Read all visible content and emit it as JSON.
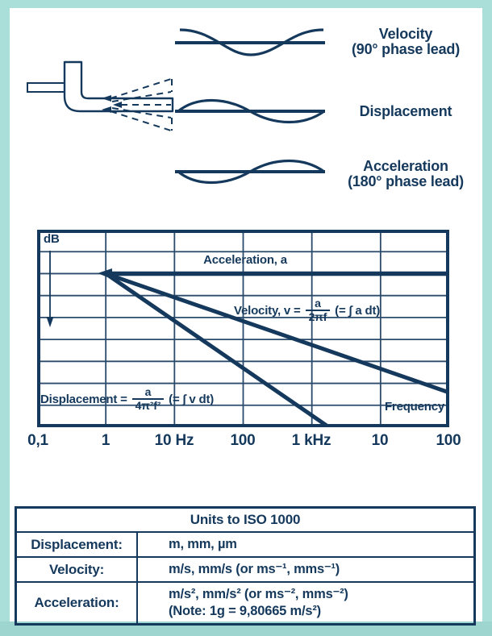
{
  "colors": {
    "navy": "#15395c",
    "grid_line": "#2b4b6c",
    "frame": "#a9ded9",
    "frame_bottom": "#9fd5cf",
    "background": "#ffffff"
  },
  "waveforms": {
    "items": [
      {
        "name": "velocity",
        "label_line1": "Velocity",
        "label_line2": "(90° phase lead)"
      },
      {
        "name": "displacement",
        "label_line1": "Displacement",
        "label_line2": ""
      },
      {
        "name": "acceleration",
        "label_line1": "Acceleration",
        "label_line2": "(180° phase lead)"
      }
    ]
  },
  "chart": {
    "ylabel": "dB",
    "xlabel": "Frequency",
    "acceleration_label": "Acceleration, a",
    "velocity_formula": {
      "prefix": "Velocity, v =",
      "numerator": "a",
      "denominator": "2πf",
      "suffix": "(= ∫ a dt)"
    },
    "displacement_formula": {
      "prefix": "Displacement =",
      "numerator": "a",
      "denominator": "4π²f²",
      "suffix": "(= ∫ v dt)"
    },
    "x_ticks": [
      "0,1",
      "1",
      "10 Hz",
      "100",
      "1 kHz",
      "10",
      "100"
    ]
  },
  "chart_data": {
    "type": "line",
    "title": "Vibration level vs frequency (log-log, relative dB)",
    "xlabel": "Frequency",
    "ylabel": "dB",
    "x_tick_labels": [
      "0,1",
      "1",
      "10 Hz",
      "100",
      "1 kHz",
      "10",
      "100"
    ],
    "grid": {
      "cols": 6,
      "rows": 9,
      "visible": true
    },
    "legend_position": "inline-annotations",
    "series": [
      {
        "name": "Acceleration, a",
        "grid_points": [
          [
            1,
            2
          ],
          [
            6,
            2
          ]
        ],
        "slope": "constant level"
      },
      {
        "name": "Velocity, v",
        "grid_points": [
          [
            1,
            2
          ],
          [
            6,
            7.42
          ]
        ],
        "slope": "falls ~1 division per decade"
      },
      {
        "name": "Displacement",
        "grid_points": [
          [
            1,
            2
          ],
          [
            4.25,
            9
          ]
        ],
        "slope": "falls ~2 divisions per decade"
      }
    ],
    "annotations": [
      "dB",
      "Acceleration, a",
      "Velocity, v = a/2πf (= ∫ a dt)",
      "Displacement = a/4π²f² (= ∫ v dt)",
      "Frequency"
    ]
  },
  "units_table": {
    "title": "Units to ISO 1000",
    "rows": [
      {
        "label": "Displacement:",
        "value": "m, mm, µm"
      },
      {
        "label": "Velocity:",
        "value": "m/s, mm/s (or ms⁻¹, mms⁻¹)"
      },
      {
        "label": "Acceleration:",
        "value": "m/s², mm/s² (or ms⁻², mms⁻²)\n(Note: 1g = 9,80665 m/s²)"
      }
    ]
  }
}
